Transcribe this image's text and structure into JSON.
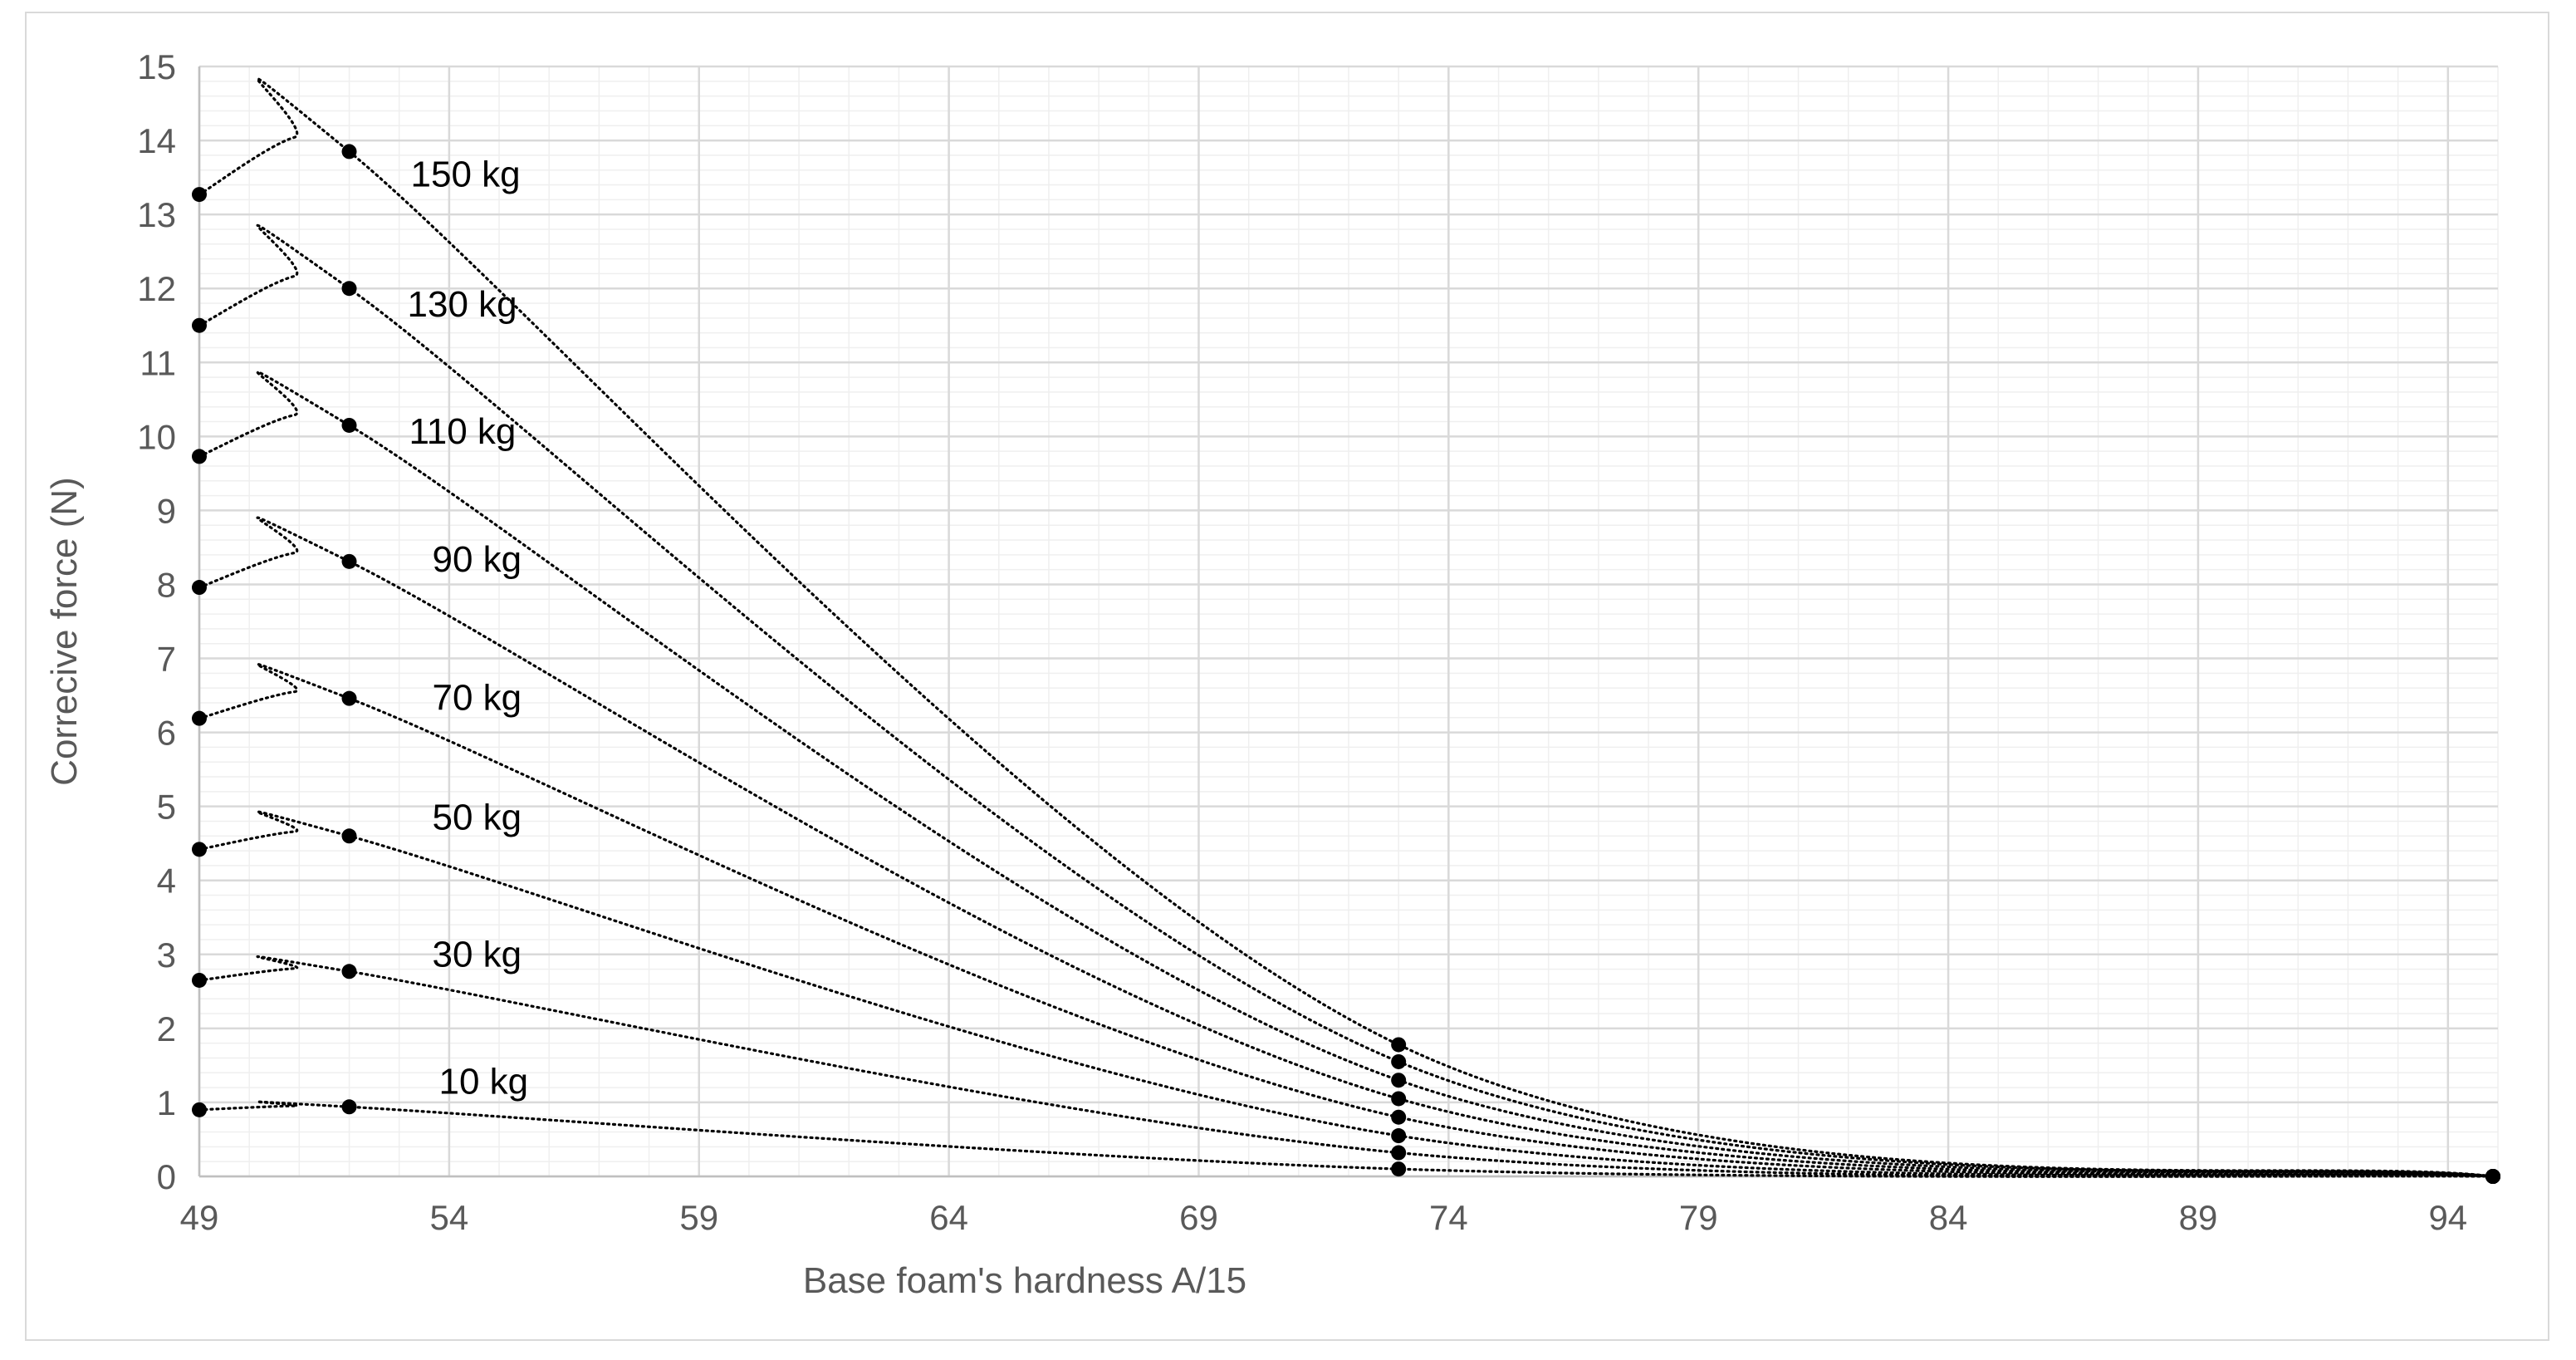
{
  "chart_data": {
    "type": "line",
    "xlabel": "Base foam's hardness  A/15",
    "ylabel": "Correcive force (N)",
    "xlim": [
      49,
      95
    ],
    "ylim": [
      0,
      15
    ],
    "x_ticks": [
      "49",
      "54",
      "59",
      "64",
      "69",
      "74",
      "79",
      "84",
      "89",
      "94"
    ],
    "y_ticks": [
      "0",
      "1",
      "2",
      "3",
      "4",
      "5",
      "6",
      "7",
      "8",
      "9",
      "10",
      "11",
      "12",
      "13",
      "14",
      "15"
    ],
    "grid": true,
    "line_style": "dotted",
    "marker": "circle",
    "x": [
      49,
      52,
      73,
      94.9
    ],
    "series": [
      {
        "name": "10 kg",
        "values": [
          0.9,
          0.94,
          0.1,
          0
        ]
      },
      {
        "name": "30 kg",
        "values": [
          2.65,
          2.77,
          0.32,
          0
        ]
      },
      {
        "name": "50 kg",
        "values": [
          4.42,
          4.6,
          0.55,
          0
        ]
      },
      {
        "name": "70 kg",
        "values": [
          6.19,
          6.46,
          0.8,
          0
        ]
      },
      {
        "name": "90 kg",
        "values": [
          7.96,
          8.31,
          1.05,
          0
        ]
      },
      {
        "name": "110 kg",
        "values": [
          9.73,
          10.15,
          1.3,
          0
        ]
      },
      {
        "name": "130 kg",
        "values": [
          11.5,
          12.0,
          1.55,
          0
        ]
      },
      {
        "name": "150 kg",
        "values": [
          13.27,
          13.85,
          1.78,
          0
        ]
      }
    ],
    "colors": {
      "series": "#000000",
      "grid_major": "#d9d9d9",
      "grid_minor": "#efefef",
      "text": "#595959"
    }
  }
}
